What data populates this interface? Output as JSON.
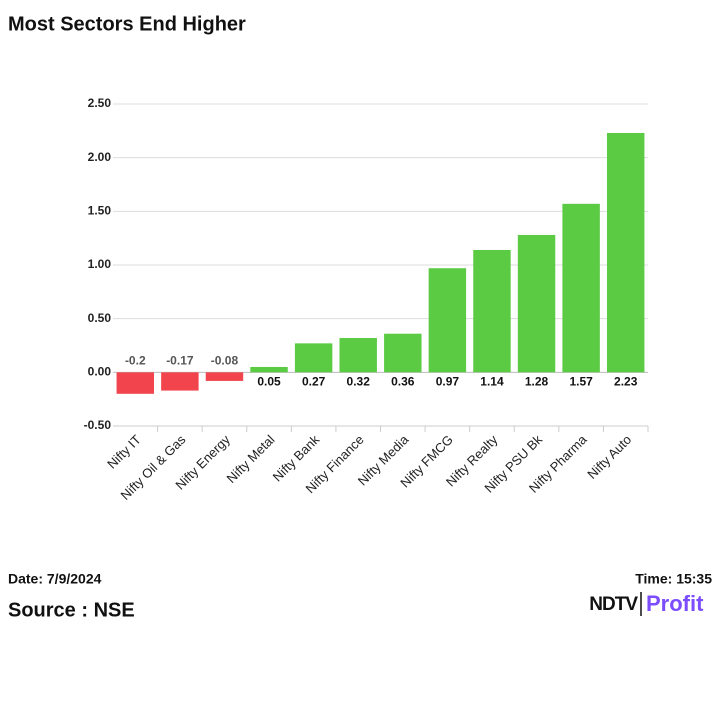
{
  "chart_data": {
    "type": "bar",
    "title": "Most Sectors End Higher",
    "categories": [
      "Nifty IT",
      "Nifty Oil & Gas",
      "Nifty Energy",
      "Nifty Metal",
      "Nifty Bank",
      "Nifty Finance",
      "Nifty Media",
      "Nifty FMCG",
      "Nifty Realty",
      "Nifty PSU Bk",
      "Nifty Pharma",
      "Nifty Auto"
    ],
    "values": [
      -0.2,
      -0.17,
      -0.08,
      0.05,
      0.27,
      0.32,
      0.36,
      0.97,
      1.14,
      1.28,
      1.57,
      2.23
    ],
    "positive_color": "#5ccb44",
    "negative_color": "#f2444c",
    "ylim": [
      -0.5,
      2.5
    ],
    "yticks": [
      {
        "value": -0.5,
        "label": "-0.50"
      },
      {
        "value": 0,
        "label": "0.00"
      },
      {
        "value": 0.5,
        "label": "0.50"
      },
      {
        "value": 1,
        "label": "1.00"
      },
      {
        "value": 1.5,
        "label": "1.50"
      },
      {
        "value": 2,
        "label": "2.00"
      },
      {
        "value": 2.5,
        "label": "2.50"
      }
    ],
    "grid": true
  },
  "footer": {
    "date": "Date: 7/9/2024",
    "time": "Time: 15:35",
    "source": "Source : NSE",
    "brand": "NDTV",
    "brand_sub": "Profit"
  }
}
